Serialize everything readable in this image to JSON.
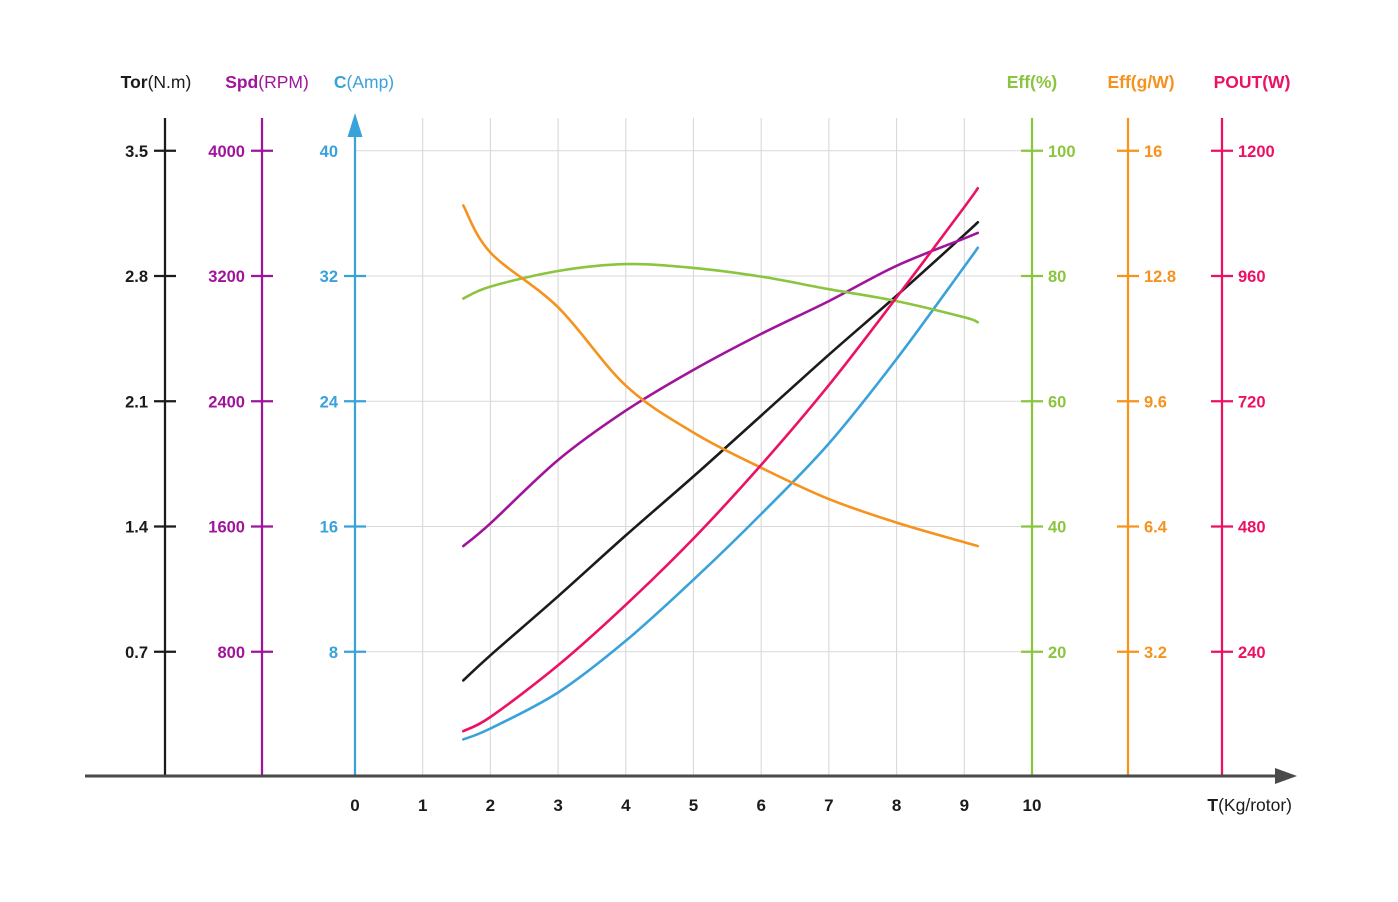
{
  "chart_data": {
    "type": "line",
    "grid": true,
    "x_axis": {
      "name": "T",
      "unit": "(Kg/rotor)",
      "ticks": [
        "0",
        "1",
        "2",
        "3",
        "4",
        "5",
        "6",
        "7",
        "8",
        "9",
        "10"
      ],
      "range": [
        0,
        10
      ]
    },
    "x": [
      1.6,
      2,
      3,
      4,
      5,
      6,
      7,
      8,
      9,
      9.2
    ],
    "series": [
      {
        "id": "tor",
        "name": "Tor",
        "unit": "(N.m)",
        "color": "#1B1B1B",
        "axis_side": "left",
        "axis_ticks": [
          "3.5",
          "2.8",
          "2.1",
          "1.4",
          "0.7"
        ],
        "axis_range": [
          0,
          3.5
        ],
        "values": [
          0.54,
          0.68,
          1.01,
          1.35,
          1.68,
          2.02,
          2.36,
          2.69,
          3.03,
          3.1
        ]
      },
      {
        "id": "spd",
        "name": "Spd",
        "unit": "(RPM)",
        "color": "#A0149C",
        "axis_side": "left",
        "axis_ticks": [
          "4000",
          "3200",
          "2400",
          "1600",
          "800"
        ],
        "axis_range": [
          0,
          4000
        ],
        "values": [
          1475,
          1620,
          2025,
          2340,
          2600,
          2830,
          3040,
          3265,
          3440,
          3475
        ]
      },
      {
        "id": "c",
        "name": "C",
        "unit": "(Amp)",
        "color": "#3AA2DB",
        "axis_side": "left",
        "axis_arrow": true,
        "axis_ticks": [
          "40",
          "32",
          "24",
          "16",
          "8"
        ],
        "axis_range": [
          0,
          40
        ],
        "values": [
          2.4,
          3.1,
          5.4,
          8.7,
          12.6,
          16.8,
          21.3,
          26.7,
          32.6,
          33.8
        ]
      },
      {
        "id": "eff-pct",
        "name": "Eff",
        "unit": "(%)",
        "color": "#8BC53F",
        "axis_side": "right",
        "axis_ticks": [
          "100",
          "80",
          "60",
          "40",
          "20"
        ],
        "axis_range": [
          0,
          100
        ],
        "values": [
          76.4,
          78.3,
          80.8,
          81.9,
          81.3,
          79.9,
          77.9,
          76,
          73.4,
          72.6
        ]
      },
      {
        "id": "eff-gw",
        "name": "Eff",
        "unit": "(g/W)",
        "color": "#F6921E",
        "axis_side": "right",
        "axis_ticks": [
          "16",
          "12.8",
          "9.6",
          "6.4",
          "3.2"
        ],
        "axis_range": [
          0,
          16
        ],
        "values": [
          14.6,
          13.4,
          12,
          10,
          8.8,
          7.9,
          7.1,
          6.5,
          6,
          5.9
        ]
      },
      {
        "id": "pout",
        "name": "POUT",
        "unit": "(W)",
        "color": "#EC1164",
        "axis_side": "right",
        "axis_ticks": [
          "1200",
          "960",
          "720",
          "480",
          "240"
        ],
        "axis_range": [
          0,
          1200
        ],
        "values": [
          88,
          115,
          214,
          330,
          457,
          598,
          751,
          919,
          1092,
          1128
        ]
      }
    ],
    "colors": {
      "grid": "#D9D9D9",
      "x_axis": "#4A4A4A",
      "tick_text": "#1B1B1B",
      "background": "#FFFFFF"
    }
  }
}
